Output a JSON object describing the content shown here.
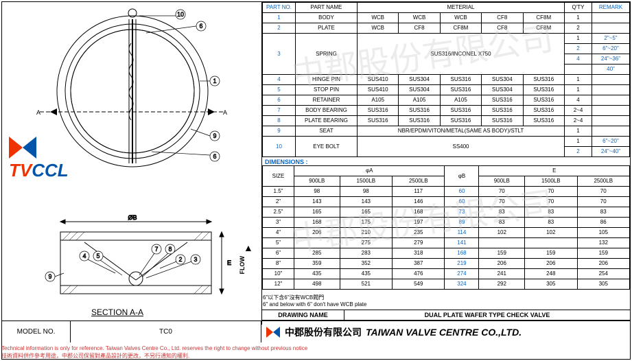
{
  "parts_header": {
    "c1": "PART NO.",
    "c2": "PART NAME",
    "c3": "METERIAL",
    "c4": "Q'TY",
    "c5": "REMARK"
  },
  "parts": [
    {
      "no": "1",
      "name": "BODY",
      "m": [
        "WCB",
        "WCB",
        "WCB",
        "CF8",
        "CF8M"
      ],
      "qty": "1",
      "rem": ""
    },
    {
      "no": "2",
      "name": "PLATE",
      "m": [
        "WCB",
        "CF8",
        "CF8M",
        "CF8",
        "CF8M"
      ],
      "qty": "2",
      "rem": ""
    },
    {
      "no": "3",
      "name": "SPRING",
      "m": [
        "SUS316/INCONEL X750"
      ],
      "span": 5,
      "qty_rows": [
        [
          "1",
          "2\"~5\""
        ],
        [
          "2",
          "6\"~20\""
        ],
        [
          "4",
          "24\"~36\""
        ],
        [
          "",
          "40\""
        ]
      ]
    },
    {
      "no": "4",
      "name": "HINGE PIN",
      "m": [
        "SUS410",
        "SUS304",
        "SUS316",
        "SUS304",
        "SUS316"
      ],
      "qty": "1",
      "rem": ""
    },
    {
      "no": "5",
      "name": "STOP PIN",
      "m": [
        "SUS410",
        "SUS304",
        "SUS316",
        "SUS304",
        "SUS316"
      ],
      "qty": "1",
      "rem": ""
    },
    {
      "no": "6",
      "name": "RETAINER",
      "m": [
        "A105",
        "A105",
        "A105",
        "SUS316",
        "SUS316"
      ],
      "qty": "4",
      "rem": ""
    },
    {
      "no": "7",
      "name": "BODY BEARING",
      "m": [
        "SUS316",
        "SUS316",
        "SUS316",
        "SUS316",
        "SUS316"
      ],
      "qty": "2~4",
      "rem": ""
    },
    {
      "no": "8",
      "name": "PLATE BEARING",
      "m": [
        "SUS316",
        "SUS316",
        "SUS316",
        "SUS316",
        "SUS316"
      ],
      "qty": "2~4",
      "rem": ""
    },
    {
      "no": "9",
      "name": "SEAT",
      "m": [
        "NBR/EPDM/VITON/METAL(SAME AS BODY)/STLT"
      ],
      "span": 5,
      "qty": "1",
      "rem": ""
    },
    {
      "no": "10",
      "name": "EYE BOLT",
      "m": [
        "SS400"
      ],
      "span": 5,
      "qty_rows": [
        [
          "1",
          "6\"~20\""
        ],
        [
          "2",
          "24\"~40\""
        ]
      ]
    }
  ],
  "dims_label": "DIMENSIONS :",
  "dims_header": {
    "size": "SIZE",
    "a": "φA",
    "b": "φB",
    "e": "E",
    "p": [
      "900LB",
      "1500LB",
      "2500LB"
    ]
  },
  "dims": [
    {
      "s": "1.5\"",
      "a": [
        "98",
        "98",
        "117"
      ],
      "b": "60",
      "e": [
        "70",
        "70",
        "70"
      ]
    },
    {
      "s": "2\"",
      "a": [
        "143",
        "143",
        "146"
      ],
      "b": "60",
      "e": [
        "70",
        "70",
        "70"
      ]
    },
    {
      "s": "2.5\"",
      "a": [
        "165",
        "165",
        "168"
      ],
      "b": "73",
      "e": [
        "83",
        "83",
        "83"
      ]
    },
    {
      "s": "3\"",
      "a": [
        "168",
        "175",
        "197"
      ],
      "b": "89",
      "e": [
        "83",
        "83",
        "86"
      ]
    },
    {
      "s": "4\"",
      "a": [
        "206",
        "210",
        "235"
      ],
      "b": "114",
      "e": [
        "102",
        "102",
        "105"
      ]
    },
    {
      "s": "5\"",
      "a": [
        "",
        "275",
        "279"
      ],
      "b": "141",
      "e": [
        "",
        "",
        "132"
      ]
    },
    {
      "s": "6\"",
      "a": [
        "285",
        "283",
        "318"
      ],
      "b": "168",
      "e": [
        "159",
        "159",
        "159"
      ]
    },
    {
      "s": "8\"",
      "a": [
        "359",
        "352",
        "387"
      ],
      "b": "219",
      "e": [
        "206",
        "206",
        "206"
      ]
    },
    {
      "s": "10\"",
      "a": [
        "435",
        "435",
        "476"
      ],
      "b": "274",
      "e": [
        "241",
        "248",
        "254"
      ]
    },
    {
      "s": "12\"",
      "a": [
        "498",
        "521",
        "549"
      ],
      "b": "324",
      "e": [
        "292",
        "305",
        "305"
      ]
    }
  ],
  "note6_cn": "6\"以下含6\"沒有WCB閥門",
  "note6_en": "6\" and below with 6\" don't have WCB plate",
  "drawing_name_lbl": "DRAWING NAME",
  "drawing_name": "DUAL PLATE WAFER TYPE CHECK VALVE",
  "model_lbl": "MODEL NO.",
  "model": "TC0",
  "company_cn": "中郡股份有限公司",
  "company_en": "TAIWAN VALVE CENTRE CO.,LTD.",
  "footer_en": "Technical information is only for reference. Taiwan Valves Centre Co., Ltd. reserves the right to change without previous notice",
  "footer_cn": "技術資料供作參考用途，中郡公司保留對產品設計的更改，不另行通知的權利.",
  "logo": {
    "tv": "TV",
    "ccl": "CCL"
  },
  "section": "SECTION A-A",
  "flow": "FLOW",
  "wm": "中郡股份有限公司",
  "callouts": [
    "1",
    "2",
    "3",
    "4",
    "5",
    "6",
    "7",
    "8",
    "9",
    "10"
  ],
  "section_marks": {
    "left": "A",
    "right": "A"
  },
  "drawing_dims": {
    "ob": "ØB",
    "e": "E"
  },
  "colors": {
    "frame": "#000000",
    "blue": "#0066cc",
    "red_logo": "#ee3300",
    "blue_logo": "#0055aa",
    "footer": "#cc3333",
    "wm": "rgba(200,200,200,0.35)",
    "drawing_line": "#000000"
  }
}
